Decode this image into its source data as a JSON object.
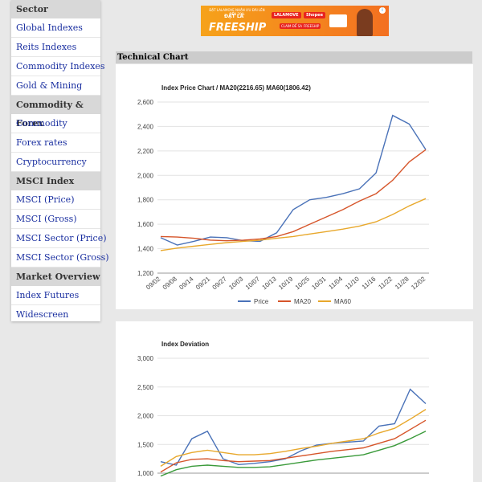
{
  "sidebar": {
    "groups": [
      {
        "title": "Sector",
        "items": [
          "Global Indexes",
          "Reits Indexes",
          "Commodity Indexes",
          "Gold & Mining"
        ]
      },
      {
        "title": "Commodity & Forex",
        "items": [
          "Commodity",
          "Forex rates",
          "Cryptocurrency"
        ]
      },
      {
        "title": "MSCI Index",
        "items": [
          "MSCI (Price)",
          "MSCI (Gross)",
          "MSCI Sector (Price)",
          "MSCI Sector (Gross)"
        ]
      },
      {
        "title": "Market Overview",
        "items": [
          "Index Futures",
          "Widescreen"
        ]
      }
    ]
  },
  "banner": {
    "sub": "ĐẶT LALAMOVE NHẬN ƯU ĐÃI LÊN ĐẾN 20%",
    "mid": "ĐẶT LÀ",
    "big": "FREESHIP",
    "logo": "LALAMOVE",
    "logo2": "Shopee",
    "pill": "CLAIM ĐỂ SALE",
    "pill2": "FREESHIP",
    "info": "i"
  },
  "section": {
    "title": "Technical Chart"
  },
  "colors": {
    "price": "#4a72b8",
    "ma20": "#d6552a",
    "ma60": "#e8a82c",
    "dev4": "#3a9a3a",
    "link": "#1a2fa0"
  },
  "chart_data": [
    {
      "type": "line",
      "title": "Index Price Chart / MA20(2216.65) MA60(1806.42)",
      "x": [
        "09/02",
        "09/08",
        "09/14",
        "09/21",
        "09/27",
        "10/03",
        "10/07",
        "10/13",
        "10/19",
        "10/25",
        "10/31",
        "11/04",
        "11/10",
        "11/16",
        "11/22",
        "11/28",
        "12/02"
      ],
      "yticks": [
        "1,200",
        "1,400",
        "1,600",
        "1,800",
        "2,000",
        "2,200",
        "2,400",
        "2,600"
      ],
      "ylim": [
        1200,
        2600
      ],
      "legend_position": "bottom",
      "series": [
        {
          "name": "Price",
          "color": "#4a72b8",
          "values": [
            1490,
            1430,
            1460,
            1495,
            1490,
            1465,
            1460,
            1530,
            1720,
            1800,
            1820,
            1850,
            1890,
            2020,
            2490,
            2420,
            2210
          ]
        },
        {
          "name": "MA20",
          "color": "#d6552a",
          "values": [
            1500,
            1495,
            1485,
            1470,
            1465,
            1470,
            1480,
            1500,
            1540,
            1600,
            1660,
            1720,
            1790,
            1850,
            1960,
            2110,
            2210
          ]
        },
        {
          "name": "MA60",
          "color": "#e8a82c",
          "values": [
            1385,
            1405,
            1420,
            1435,
            1450,
            1460,
            1470,
            1485,
            1500,
            1520,
            1540,
            1560,
            1585,
            1620,
            1680,
            1750,
            1810
          ]
        }
      ]
    },
    {
      "type": "line",
      "title": "Index Deviation",
      "yticks": [
        "1,000",
        "1,500",
        "2,000",
        "2,500",
        "3,000"
      ],
      "ylim": [
        1000,
        3000
      ],
      "series": [
        {
          "color": "#4a72b8",
          "values": [
            1200,
            1140,
            1600,
            1730,
            1250,
            1150,
            1170,
            1200,
            1250,
            1390,
            1490,
            1520,
            1540,
            1560,
            1820,
            1860,
            2460,
            2210
          ]
        },
        {
          "color": "#e8a82c",
          "values": [
            1120,
            1290,
            1360,
            1400,
            1360,
            1320,
            1320,
            1340,
            1380,
            1430,
            1470,
            1520,
            1560,
            1600,
            1700,
            1780,
            1940,
            2110
          ]
        },
        {
          "color": "#d6552a",
          "values": [
            1020,
            1180,
            1240,
            1250,
            1220,
            1200,
            1210,
            1220,
            1260,
            1300,
            1340,
            1380,
            1410,
            1440,
            1520,
            1600,
            1760,
            1920
          ]
        },
        {
          "color": "#3a9a3a",
          "values": [
            950,
            1060,
            1120,
            1140,
            1120,
            1100,
            1100,
            1110,
            1150,
            1190,
            1230,
            1260,
            1290,
            1320,
            1400,
            1480,
            1600,
            1730
          ]
        }
      ]
    }
  ]
}
